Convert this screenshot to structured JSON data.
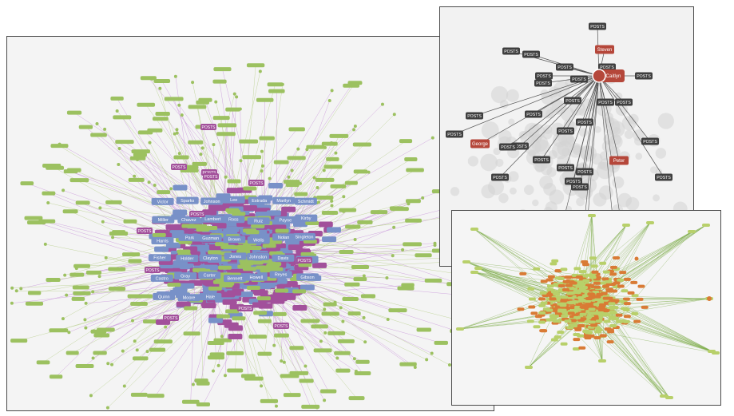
{
  "focus_graph": {
    "center_node": "Caitlyn",
    "highlighted_people": [
      "Steven",
      "George",
      "Peter"
    ],
    "post_label": "POSTS",
    "colors": {
      "person": "#b5473a",
      "post": "#3f3f3f",
      "edge": "#555555",
      "halo": "#d3d3d3"
    }
  },
  "main_graph": {
    "post_label": "POSTS",
    "visible_names": [
      "Victor",
      "Sparks",
      "Johnson",
      "Lee",
      "Estrada",
      "Marilyn",
      "Schmidt",
      "Miller",
      "Chavez",
      "Lambert",
      "Ross",
      "Ruiz",
      "Payne",
      "Kirby",
      "Harris",
      "Park",
      "Guzman",
      "Brown",
      "Wells",
      "Nolan",
      "Singleton",
      "Fisher",
      "Holder",
      "Clayton",
      "Jones",
      "Johnston",
      "Davis",
      "Kim",
      "Castro",
      "Gray",
      "Carter",
      "Bennett",
      "Howell",
      "Reyes",
      "Gibson",
      "Quinn",
      "Moore",
      "Hale"
    ],
    "colors": {
      "person": "#7891c8",
      "post": "#a2509b",
      "leaf": "#9cc160",
      "edge_a": "#c58fd8",
      "edge_b": "#b4cc86"
    }
  },
  "orange_graph": {
    "colors": {
      "node_a": "#d97b35",
      "node_b": "#b8d06a",
      "edge": "#7fae4c"
    }
  }
}
